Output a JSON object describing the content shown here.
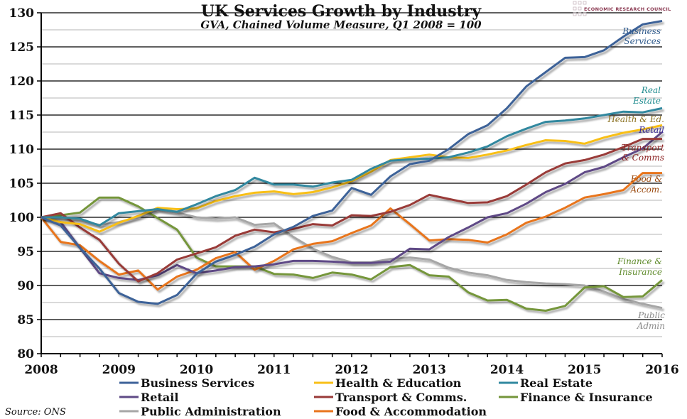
{
  "chart_data": {
    "type": "line",
    "title": "UK Services Growth by Industry",
    "subtitle": "GVA, Chained Volume Measure, Q1 2008 = 100",
    "xlabel": "",
    "ylabel": "",
    "ylim": [
      80,
      130
    ],
    "yticks": [
      80,
      85,
      90,
      95,
      100,
      105,
      110,
      115,
      120,
      125,
      130
    ],
    "xticks": [
      "2008",
      "2009",
      "2010",
      "2011",
      "2012",
      "2013",
      "2014",
      "2015",
      "2016"
    ],
    "x_quarters": [
      "2008 Q1",
      "2008 Q2",
      "2008 Q3",
      "2008 Q4",
      "2009 Q1",
      "2009 Q2",
      "2009 Q3",
      "2009 Q4",
      "2010 Q1",
      "2010 Q2",
      "2010 Q3",
      "2010 Q4",
      "2011 Q1",
      "2011 Q2",
      "2011 Q3",
      "2011 Q4",
      "2012 Q1",
      "2012 Q2",
      "2012 Q3",
      "2012 Q4",
      "2013 Q1",
      "2013 Q2",
      "2013 Q3",
      "2013 Q4",
      "2014 Q1",
      "2014 Q2",
      "2014 Q3",
      "2014 Q4",
      "2015 Q1",
      "2015 Q2",
      "2015 Q3",
      "2015 Q4",
      "2016 Q1"
    ],
    "grid": true,
    "legend_position": "bottom",
    "series": [
      {
        "name": "Business Services",
        "end_label": [
          "Business",
          "Services"
        ],
        "color": "#3d6298",
        "label_color": "#2f5a8c",
        "values": [
          100,
          98.8,
          95.5,
          92.5,
          88.9,
          87.6,
          87.3,
          88.6,
          91.7,
          93.5,
          94.5,
          95.7,
          97.5,
          98.6,
          100.2,
          101.0,
          104.3,
          103.3,
          106.0,
          107.8,
          108.3,
          110.0,
          112.2,
          113.5,
          116.0,
          119.2,
          121.3,
          123.4,
          123.5,
          124.5,
          126.5,
          128.3,
          128.8
        ]
      },
      {
        "name": "Health & Education",
        "end_label": [
          "Health & Ed."
        ],
        "color": "#f8bf17",
        "label_color": "#8a7020",
        "values": [
          100,
          99.3,
          99.0,
          97.9,
          99.2,
          100.2,
          101.4,
          101.2,
          101.3,
          102.4,
          103.1,
          103.6,
          103.8,
          103.4,
          103.7,
          104.4,
          105.3,
          106.7,
          108.4,
          108.8,
          109.2,
          108.8,
          108.7,
          109.2,
          109.8,
          110.6,
          111.3,
          111.2,
          110.8,
          111.7,
          112.4,
          112.9,
          113.5
        ]
      },
      {
        "name": "Real Estate",
        "end_label": [
          "Real",
          "Estate"
        ],
        "color": "#30889f",
        "label_color": "#1f8b8f",
        "values": [
          100,
          100.0,
          99.8,
          98.8,
          100.6,
          100.9,
          101.2,
          100.8,
          101.9,
          103.1,
          104.0,
          105.8,
          104.8,
          104.8,
          104.5,
          105.1,
          105.5,
          107.1,
          108.3,
          108.5,
          108.6,
          108.8,
          109.5,
          110.4,
          111.9,
          113.0,
          114.0,
          114.2,
          114.5,
          115.0,
          115.5,
          115.4,
          116.0
        ]
      },
      {
        "name": "Retail",
        "end_label": [
          "Retail"
        ],
        "color": "#5e4a86",
        "label_color": "#3a2a95",
        "values": [
          100,
          99.3,
          95.5,
          91.8,
          91.1,
          90.8,
          91.5,
          93.0,
          91.8,
          92.2,
          92.7,
          92.8,
          93.1,
          93.6,
          93.6,
          93.5,
          93.3,
          93.3,
          93.5,
          95.4,
          95.3,
          97.1,
          98.5,
          100.0,
          100.6,
          102.0,
          103.7,
          104.9,
          106.6,
          107.4,
          108.8,
          110.1,
          112.5
        ]
      },
      {
        "name": "Transport & Comms.",
        "end_label": [
          "Transport",
          "& Comms"
        ],
        "color": "#993a38",
        "label_color": "#8b2020",
        "values": [
          100,
          100.6,
          98.5,
          96.7,
          93.2,
          90.6,
          91.8,
          93.8,
          94.7,
          95.6,
          97.3,
          98.2,
          97.8,
          98.3,
          99.0,
          98.8,
          100.3,
          100.2,
          100.8,
          101.8,
          103.3,
          102.7,
          102.1,
          102.2,
          103.1,
          104.8,
          106.6,
          107.9,
          108.4,
          109.2,
          110.3,
          111.5,
          111.5
        ]
      },
      {
        "name": "Finance & Insurance",
        "end_label": [
          "Finance &",
          "Insurance"
        ],
        "color": "#74963b",
        "label_color": "#5e8a2a",
        "values": [
          100,
          100.3,
          100.7,
          102.9,
          102.9,
          101.6,
          99.9,
          98.2,
          94.1,
          92.8,
          92.8,
          92.8,
          91.7,
          91.6,
          91.1,
          91.9,
          91.6,
          90.9,
          92.7,
          93.0,
          91.5,
          91.3,
          89.0,
          87.8,
          87.9,
          86.6,
          86.3,
          87.0,
          89.7,
          89.9,
          88.3,
          88.4,
          90.8
        ]
      },
      {
        "name": "Public Administration",
        "end_label": [
          "Public",
          "Admin"
        ],
        "color": "#a6a6a6",
        "label_color": "#8a8a8a",
        "values": [
          100,
          99.7,
          99.5,
          98.9,
          99.3,
          100.0,
          101.1,
          100.7,
          100.0,
          99.8,
          100.0,
          98.9,
          99.1,
          97.1,
          95.4,
          94.2,
          93.4,
          93.4,
          93.9,
          94.1,
          93.8,
          92.6,
          91.9,
          91.5,
          90.8,
          90.5,
          90.3,
          90.2,
          90.0,
          89.1,
          88.0,
          87.3,
          86.7
        ]
      },
      {
        "name": "Food & Accommodation",
        "end_label": [
          "Food &",
          "Accom."
        ],
        "color": "#e8741c",
        "label_color": "#9a4a10",
        "values": [
          100,
          96.4,
          95.9,
          93.6,
          91.6,
          92.2,
          89.4,
          91.3,
          92.3,
          94.0,
          94.9,
          92.3,
          93.6,
          95.3,
          96.1,
          96.5,
          97.7,
          98.8,
          101.3,
          99.0,
          96.6,
          96.8,
          96.7,
          96.3,
          97.5,
          99.2,
          100.1,
          101.4,
          102.9,
          103.4,
          104.0,
          106.5,
          106.5
        ]
      }
    ],
    "source": "Source: ONS",
    "logo_text": "ECONOMIC RESEARCH COUNCIL"
  }
}
